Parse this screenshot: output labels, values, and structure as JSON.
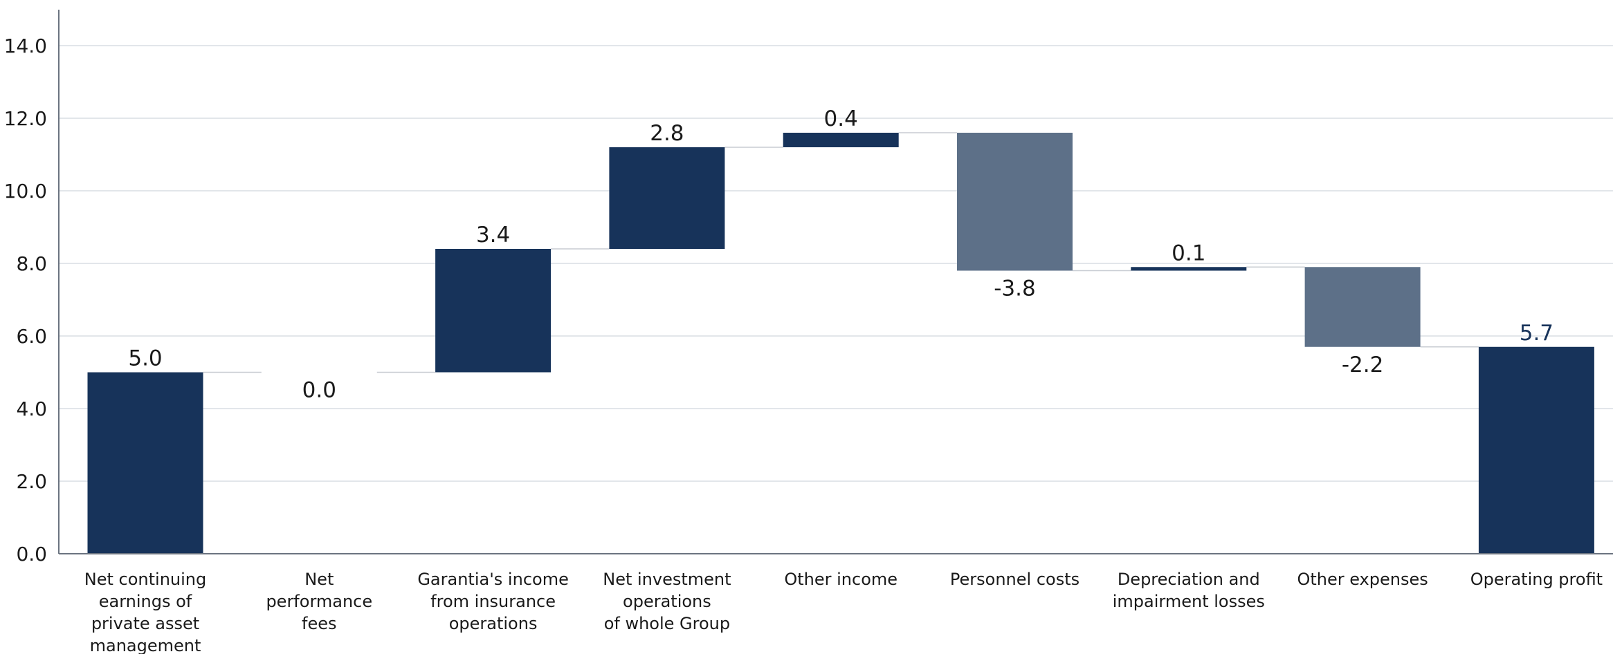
{
  "chart_data": {
    "type": "bar",
    "subtype": "waterfall",
    "categories": [
      [
        "Net continuing",
        "earnings of",
        "private asset",
        "management"
      ],
      [
        "Net",
        "performance",
        "fees"
      ],
      [
        "Garantia's income",
        "from insurance",
        "operations"
      ],
      [
        "Net investment",
        "operations",
        "of whole Group"
      ],
      [
        "Other income"
      ],
      [
        "Personnel costs"
      ],
      [
        "Depreciation and",
        "impairment losses"
      ],
      [
        "Other expenses"
      ],
      [
        "Operating profit"
      ]
    ],
    "values": [
      5.0,
      0.0,
      3.4,
      2.8,
      0.4,
      -3.8,
      0.1,
      -2.2,
      5.7
    ],
    "value_labels": [
      "5.0",
      "0.0",
      "3.4",
      "2.8",
      "0.4",
      "-3.8",
      "0.1",
      "-2.2",
      "5.7"
    ],
    "kinds": [
      "total",
      "delta",
      "delta",
      "delta",
      "delta",
      "delta",
      "delta",
      "delta",
      "total"
    ],
    "ylim": [
      0,
      15
    ],
    "yticks": [
      0,
      2,
      4,
      6,
      8,
      10,
      12,
      14
    ],
    "ytick_labels": [
      "0.0",
      "2.0",
      "4.0",
      "6.0",
      "8.0",
      "10.0",
      "12.0",
      "14.0"
    ],
    "grid": true,
    "colors": {
      "positive": "#17335a",
      "negative": "#5d7088",
      "total": "#17335a",
      "total_label": "#17335a"
    },
    "title": "",
    "xlabel": "",
    "ylabel": ""
  }
}
